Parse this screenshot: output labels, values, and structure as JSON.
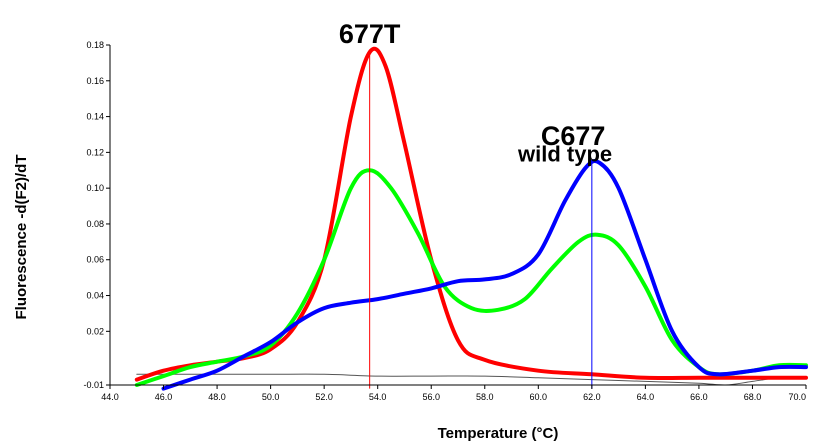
{
  "chart_data": {
    "type": "line",
    "title": "",
    "xlabel": "Temperature (°C)",
    "ylabel": "Fluorescence -d(F2)/dT",
    "xlim": [
      44.0,
      70.0
    ],
    "ylim": [
      -0.01,
      0.18
    ],
    "grid": false,
    "x_ticks": [
      "44.0",
      "46.0",
      "48.0",
      "50.0",
      "52.0",
      "54.0",
      "56.0",
      "58.0",
      "60.0",
      "62.0",
      "64.0",
      "66.0",
      "68.0",
      "70.0"
    ],
    "y_ticks": [
      {
        "value": -0.01,
        "label": "-0.01"
      },
      {
        "value": 0.02,
        "label": "0.02"
      },
      {
        "value": 0.04,
        "label": "0.04"
      },
      {
        "value": 0.06,
        "label": "0.06"
      },
      {
        "value": 0.08,
        "label": "0.08"
      },
      {
        "value": 0.1,
        "label": "0.10"
      },
      {
        "value": 0.12,
        "label": "0.12"
      },
      {
        "value": 0.14,
        "label": "0.14"
      },
      {
        "value": 0.16,
        "label": "0.16"
      },
      {
        "value": 0.18,
        "label": "0.18"
      }
    ],
    "annotations": [
      {
        "text": "677T",
        "x": 53.7,
        "y": 0.181,
        "style": "big"
      },
      {
        "text": "C677",
        "x": 61.3,
        "y": 0.124,
        "style": "big"
      },
      {
        "text": "wild type",
        "x": 61.0,
        "y": 0.115,
        "style": "small"
      }
    ],
    "reference_lines": [
      {
        "x": 53.7,
        "color": "#ff0000",
        "y_from": -0.012,
        "y_to": 0.176
      },
      {
        "x": 62.0,
        "color": "#0000ff",
        "y_from": -0.012,
        "y_to": 0.114
      }
    ],
    "series": [
      {
        "color": "#ff0000",
        "width": 4,
        "points": [
          [
            45.0,
            -0.007
          ],
          [
            46.0,
            -0.002
          ],
          [
            47.0,
            0.001
          ],
          [
            48.0,
            0.003
          ],
          [
            49.0,
            0.005
          ],
          [
            50.0,
            0.01
          ],
          [
            51.0,
            0.025
          ],
          [
            52.0,
            0.06
          ],
          [
            53.0,
            0.14
          ],
          [
            53.7,
            0.176
          ],
          [
            54.3,
            0.168
          ],
          [
            55.0,
            0.125
          ],
          [
            56.0,
            0.06
          ],
          [
            57.0,
            0.015
          ],
          [
            58.0,
            0.004
          ],
          [
            60.0,
            -0.002
          ],
          [
            62.0,
            -0.004
          ],
          [
            64.0,
            -0.006
          ],
          [
            66.0,
            -0.006
          ],
          [
            68.0,
            -0.006
          ],
          [
            70.0,
            -0.006
          ]
        ]
      },
      {
        "color": "#00ff00",
        "width": 4,
        "points": [
          [
            45.0,
            -0.01
          ],
          [
            46.0,
            -0.005
          ],
          [
            47.0,
            0.0
          ],
          [
            48.0,
            0.003
          ],
          [
            49.0,
            0.006
          ],
          [
            50.0,
            0.012
          ],
          [
            51.0,
            0.03
          ],
          [
            52.0,
            0.06
          ],
          [
            53.0,
            0.1
          ],
          [
            53.7,
            0.11
          ],
          [
            54.5,
            0.1
          ],
          [
            55.5,
            0.075
          ],
          [
            56.5,
            0.045
          ],
          [
            57.5,
            0.033
          ],
          [
            58.5,
            0.032
          ],
          [
            59.5,
            0.038
          ],
          [
            60.5,
            0.055
          ],
          [
            61.5,
            0.07
          ],
          [
            62.2,
            0.074
          ],
          [
            63.0,
            0.068
          ],
          [
            64.0,
            0.045
          ],
          [
            65.0,
            0.015
          ],
          [
            66.0,
            0.0
          ],
          [
            66.7,
            -0.004
          ],
          [
            68.0,
            -0.002
          ],
          [
            69.0,
            0.001
          ],
          [
            70.0,
            0.001
          ]
        ]
      },
      {
        "color": "#0000ff",
        "width": 4,
        "points": [
          [
            46.0,
            -0.012
          ],
          [
            47.0,
            -0.007
          ],
          [
            48.0,
            -0.002
          ],
          [
            49.0,
            0.006
          ],
          [
            50.0,
            0.014
          ],
          [
            51.0,
            0.025
          ],
          [
            52.0,
            0.033
          ],
          [
            53.0,
            0.036
          ],
          [
            54.0,
            0.038
          ],
          [
            55.0,
            0.041
          ],
          [
            56.0,
            0.044
          ],
          [
            57.0,
            0.048
          ],
          [
            58.0,
            0.049
          ],
          [
            59.0,
            0.052
          ],
          [
            60.0,
            0.063
          ],
          [
            61.0,
            0.093
          ],
          [
            61.8,
            0.112
          ],
          [
            62.3,
            0.114
          ],
          [
            63.0,
            0.1
          ],
          [
            64.0,
            0.06
          ],
          [
            65.0,
            0.02
          ],
          [
            66.0,
            0.0
          ],
          [
            66.7,
            -0.004
          ],
          [
            68.0,
            -0.002
          ],
          [
            69.0,
            0.0
          ],
          [
            70.0,
            0.0
          ]
        ]
      },
      {
        "color": "#555555",
        "width": 1,
        "points": [
          [
            45.0,
            -0.004
          ],
          [
            48.0,
            -0.004
          ],
          [
            50.0,
            -0.004
          ],
          [
            52.0,
            -0.004
          ],
          [
            54.0,
            -0.005
          ],
          [
            56.0,
            -0.005
          ],
          [
            58.0,
            -0.005
          ],
          [
            60.0,
            -0.006
          ],
          [
            62.0,
            -0.007
          ],
          [
            64.0,
            -0.008
          ],
          [
            66.0,
            -0.009
          ],
          [
            67.0,
            -0.01
          ],
          [
            68.0,
            -0.008
          ],
          [
            69.0,
            -0.006
          ],
          [
            70.0,
            -0.006
          ]
        ]
      }
    ]
  }
}
